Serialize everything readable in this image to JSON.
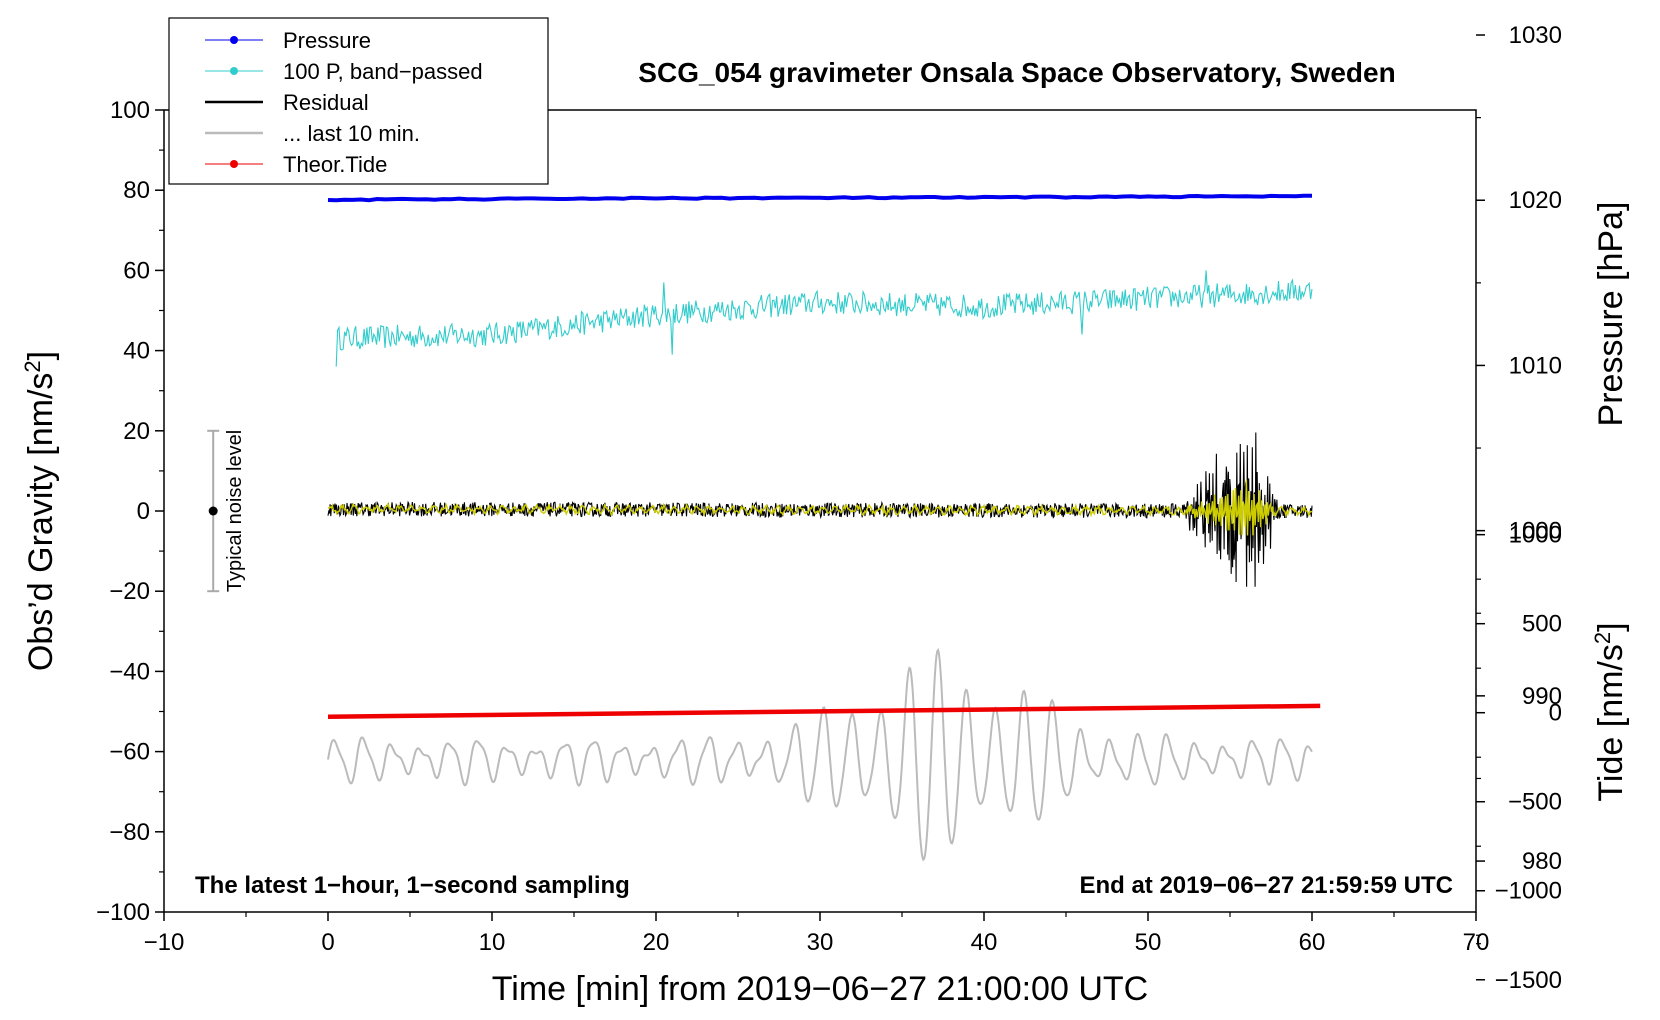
{
  "chart_data": {
    "type": "line",
    "title": "SCG_054 gravimeter Onsala Space Observatory, Sweden",
    "xlabel": "Time [min] from 2019−06−27 21:00:00 UTC",
    "ylabel_left": "Obs’d Gravity [nm/s",
    "ylabel_left_sup": "2",
    "ylabel_left_end": "]",
    "ylabel_right_pressure": "Pressure [hPa]",
    "ylabel_right_tide": "Tide [nm/s",
    "ylabel_right_tide_sup": "2",
    "ylabel_right_tide_end": "]",
    "xlim": [
      -10,
      70
    ],
    "ylim": [
      -100,
      100
    ],
    "x_ticks": [
      -10,
      0,
      10,
      20,
      30,
      40,
      50,
      60,
      70
    ],
    "x_tick_labels": [
      "−10",
      "0",
      "10",
      "20",
      "30",
      "40",
      "50",
      "60",
      "70"
    ],
    "y_ticks": [
      100,
      80,
      60,
      40,
      20,
      0,
      -20,
      -40,
      -60,
      -80,
      -100
    ],
    "y_tick_labels": [
      "100",
      "80",
      "60",
      "40",
      "20",
      "0",
      "−20",
      "−40",
      "−60",
      "−80",
      "−100"
    ],
    "pressure_axis": {
      "ticks": [
        1030,
        1020,
        1010,
        1000,
        990,
        980
      ],
      "tick_labels": [
        "1030",
        "1020",
        "1010",
        "1000",
        "990",
        "980"
      ],
      "map": {
        "ref_value": 1020,
        "ref_gravity": 77.5,
        "gravity_per_unit": 4.12
      }
    },
    "tide_axis": {
      "ticks": [
        1000,
        500,
        0,
        -500,
        -1000,
        -1500
      ],
      "tick_labels": [
        "1000",
        "500",
        "0",
        "−500",
        "−1000",
        "−1500"
      ],
      "map": {
        "ref_value": 0,
        "ref_gravity": -50.3,
        "gravity_per_unit": 0.0444
      }
    },
    "legend": [
      {
        "label": "Pressure",
        "color": "#0000ee",
        "marker": true
      },
      {
        "label": "100 P, band−passed",
        "color": "#33cccc",
        "marker": true
      },
      {
        "label": "Residual",
        "color": "#000000",
        "marker": false
      },
      {
        "label": "... last 10 min.",
        "color": "#bbbbbb",
        "marker": false
      },
      {
        "label": "Theor.Tide",
        "color": "#ee0000",
        "marker": true
      }
    ],
    "series": [
      {
        "name": "Pressure",
        "color": "#0000ee",
        "x": [
          0,
          10,
          20,
          30,
          40,
          50,
          60
        ],
        "y": [
          77.6,
          77.8,
          78.0,
          78.1,
          78.2,
          78.4,
          78.5
        ]
      },
      {
        "name": "100 P, band-passed",
        "color": "#33cccc",
        "x": [
          0,
          10,
          20,
          30,
          40,
          50,
          60
        ],
        "y": [
          43,
          44,
          49,
          52,
          51,
          53,
          55
        ],
        "noise_amplitude": 3,
        "spikes": [
          {
            "x": 0.5,
            "y": 36
          },
          {
            "x": 21,
            "y": 39
          },
          {
            "x": 20.5,
            "y": 57
          },
          {
            "x": 46,
            "y": 44
          },
          {
            "x": 53.5,
            "y": 60
          }
        ]
      },
      {
        "name": "Residual",
        "color": "#000000",
        "x": [
          0,
          60
        ],
        "y": [
          0.5,
          0
        ],
        "noise_amplitude": 3,
        "burst": {
          "x_start": 52,
          "x_peak": 56.3,
          "x_end": 58,
          "amplitude": 20
        }
      },
      {
        "name": "Residual, low-passed",
        "color": "#cccc00",
        "x": [
          0,
          60
        ],
        "y": [
          0.5,
          0
        ],
        "noise_amplitude": 1.2,
        "burst": {
          "x_start": 52,
          "x_peak": 56,
          "x_end": 58,
          "amplitude": 7
        }
      },
      {
        "name": "Theor.Tide",
        "color": "#ee0000",
        "x": [
          0,
          60.5
        ],
        "y": [
          -51.3,
          -48.6
        ]
      },
      {
        "name": "... last 10 min.",
        "color": "#bbbbbb",
        "x": [
          0,
          60
        ],
        "y": [
          -62,
          -62
        ],
        "oscillation": {
          "period_min": 1.75,
          "base_amplitude": 4,
          "peak_amplitude": 20,
          "peak_x": 37.5,
          "peak_width": 7
        }
      }
    ],
    "noise_level": {
      "label": "Typical noise level",
      "x": -7,
      "y": 0,
      "range": [
        -20,
        20
      ]
    },
    "annotations": {
      "bottom_left": "The latest 1−hour, 1−second sampling",
      "bottom_right": "End at 2019−06−27 21:59:59 UTC"
    }
  }
}
